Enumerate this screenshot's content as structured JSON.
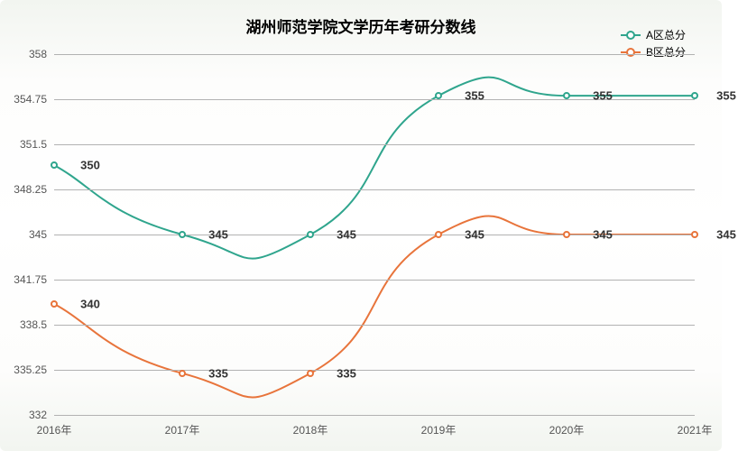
{
  "chart": {
    "type": "line",
    "title": "湖州师范学院文学历年考研分数线",
    "title_fontsize": 17,
    "title_color": "#000000",
    "background_gradient_top": "#f2f5f0",
    "background_gradient_mid": "#ffffff",
    "grid_color": "#b2b2b2",
    "axis_label_color": "#555555",
    "axis_fontsize": 12,
    "data_label_fontsize": 13,
    "data_label_color": "#333333",
    "ylim": [
      332,
      358
    ],
    "yticks": [
      332,
      335.25,
      338.5,
      341.75,
      345,
      348.25,
      351.5,
      354.75,
      358
    ],
    "ytick_labels": [
      "332",
      "335.25",
      "338.5",
      "341.75",
      "345",
      "348.25",
      "351.5",
      "354.75",
      "358"
    ],
    "xlabels": [
      "2016年",
      "2017年",
      "2018年",
      "2019年",
      "2020年",
      "2021年"
    ],
    "legend": {
      "position": "top-right",
      "items": [
        {
          "label": "A区总分",
          "color": "#2fa58d"
        },
        {
          "label": "B区总分",
          "color": "#e8743b"
        }
      ]
    },
    "series": [
      {
        "name": "A区总分",
        "color": "#2fa58d",
        "line_width": 2,
        "marker_border": 2,
        "values": [
          350,
          345,
          345,
          355,
          355,
          355
        ],
        "label_offsets": [
          {
            "dx": 40,
            "dy": 0
          },
          {
            "dx": 40,
            "dy": 0
          },
          {
            "dx": 40,
            "dy": 0
          },
          {
            "dx": 40,
            "dy": 0
          },
          {
            "dx": 40,
            "dy": 0
          },
          {
            "dx": 35,
            "dy": 0
          }
        ]
      },
      {
        "name": "B区总分",
        "color": "#e8743b",
        "line_width": 2,
        "marker_border": 2,
        "values": [
          340,
          335,
          335,
          345,
          345,
          345
        ],
        "label_offsets": [
          {
            "dx": 40,
            "dy": 0
          },
          {
            "dx": 40,
            "dy": 0
          },
          {
            "dx": 40,
            "dy": 0
          },
          {
            "dx": 40,
            "dy": 0
          },
          {
            "dx": 40,
            "dy": 0
          },
          {
            "dx": 35,
            "dy": 0
          }
        ]
      }
    ]
  }
}
